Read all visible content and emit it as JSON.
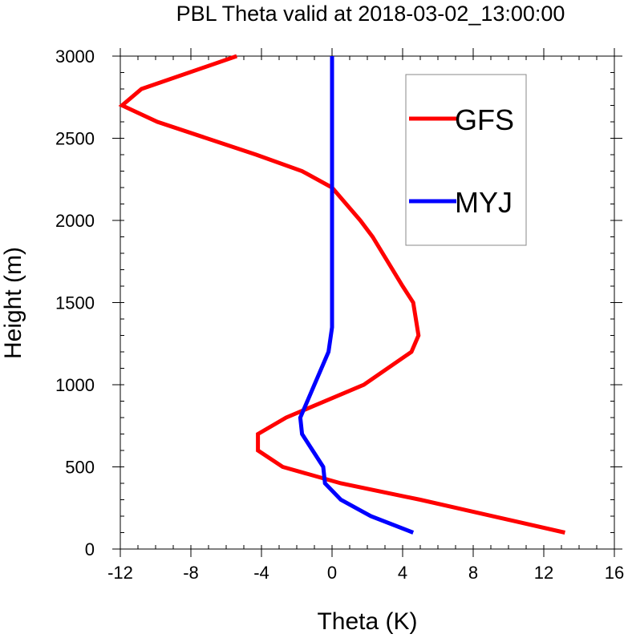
{
  "chart_data": {
    "type": "line",
    "title": "PBL Theta valid at 2018-03-02_13:00:00",
    "xlabel": "Theta (K)",
    "ylabel": "Height (m)",
    "xlim": [
      -12,
      16
    ],
    "ylim": [
      0,
      3000
    ],
    "xticks": [
      -12,
      -8,
      -4,
      0,
      4,
      8,
      12,
      16
    ],
    "yticks": [
      0,
      500,
      1000,
      1500,
      2000,
      2500,
      3000
    ],
    "xtick_labels": [
      "-12",
      "-8",
      "-4",
      "0",
      "4",
      "8",
      "12",
      "16"
    ],
    "ytick_labels": [
      "0",
      "500",
      "1000",
      "1500",
      "2000",
      "2500",
      "3000"
    ],
    "legend_position": "top-right",
    "grid": false,
    "series": [
      {
        "name": "GFS",
        "color": "#ff0000",
        "points": [
          [
            13.2,
            100
          ],
          [
            5.0,
            300
          ],
          [
            0.5,
            400
          ],
          [
            -2.8,
            500
          ],
          [
            -4.2,
            600
          ],
          [
            -4.2,
            700
          ],
          [
            -2.6,
            800
          ],
          [
            1.8,
            1000
          ],
          [
            4.5,
            1200
          ],
          [
            4.9,
            1300
          ],
          [
            4.6,
            1500
          ],
          [
            4.0,
            1600
          ],
          [
            2.3,
            1900
          ],
          [
            1.6,
            2000
          ],
          [
            0.0,
            2200
          ],
          [
            -1.7,
            2300
          ],
          [
            -4.3,
            2400
          ],
          [
            -9.9,
            2600
          ],
          [
            -11.9,
            2700
          ],
          [
            -10.8,
            2800
          ],
          [
            -5.4,
            3000
          ]
        ]
      },
      {
        "name": "MYJ",
        "color": "#0000ff",
        "points": [
          [
            4.6,
            100
          ],
          [
            2.2,
            200
          ],
          [
            0.5,
            300
          ],
          [
            -0.4,
            400
          ],
          [
            -0.5,
            500
          ],
          [
            -1.7,
            700
          ],
          [
            -1.8,
            800
          ],
          [
            -1.6,
            850
          ],
          [
            -1.0,
            1000
          ],
          [
            -0.2,
            1200
          ],
          [
            0.0,
            1350
          ],
          [
            0.0,
            1500
          ],
          [
            0.0,
            2000
          ],
          [
            0.0,
            2500
          ],
          [
            0.0,
            3000
          ]
        ]
      }
    ]
  }
}
